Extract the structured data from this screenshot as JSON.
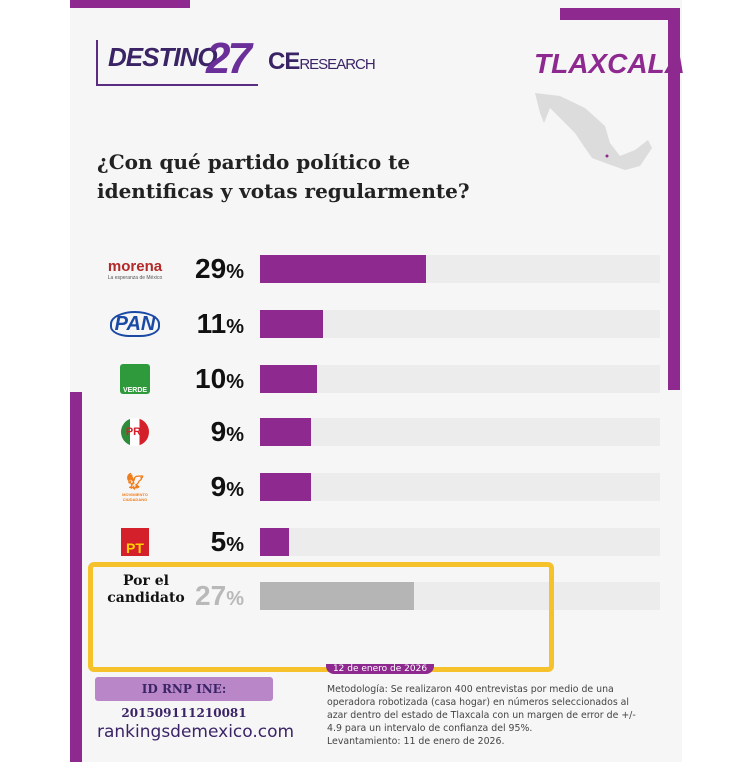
{
  "header": {
    "brand_1": "DESTINO",
    "brand_1_num": "27",
    "brand_2": "CE",
    "brand_2_small": "RESEARCH",
    "state": "TLAXCALA"
  },
  "chart_data": {
    "type": "bar",
    "orientation": "horizontal",
    "title": "¿Con qué partido político te identificas y votas regularmente?",
    "categories": [
      "morena",
      "PAN",
      "VERDE",
      "PRI",
      "MOVIMIENTO CIUDADANO",
      "PT",
      "Por el candidato"
    ],
    "values": [
      29,
      11,
      10,
      9,
      9,
      5,
      27
    ],
    "unit": "%",
    "xlim": [
      0,
      70
    ],
    "highlight_colors": {
      "party": "#8e2a8f",
      "candidate": "#b5b5b5"
    }
  },
  "rows": [
    {
      "party": "morena",
      "sub": "La esperanza de México",
      "value": "29",
      "pct": 29
    },
    {
      "party": "PAN",
      "value": "11",
      "pct": 11
    },
    {
      "party": "VERDE",
      "value": "10",
      "pct": 10
    },
    {
      "party": "PRI",
      "value": "9",
      "pct": 9
    },
    {
      "party": "MOVIMIENTO CIUDADANO",
      "value": "9",
      "pct": 9
    },
    {
      "party": "PT",
      "value": "5",
      "pct": 5
    },
    {
      "party": "Por el candidato",
      "label_1": "Por el",
      "label_2": "candidato",
      "value": "27",
      "pct": 27
    }
  ],
  "percent_sign": "%",
  "footer": {
    "date": "12 de enero de 2026",
    "rnp": "ID RNP INE: 201509111210081",
    "site": "rankingsdemexico.com",
    "methodology": "Metodología: Se realizaron 400 entrevistas por medio de una operadora robotizada (casa hogar) en números seleccionados al azar dentro del estado de Tlaxcala con un margen de error de +/- 4.9 para un intervalo de confianza del 95%.",
    "levantamiento": "Levantamiento: 11 de enero de 2026."
  }
}
